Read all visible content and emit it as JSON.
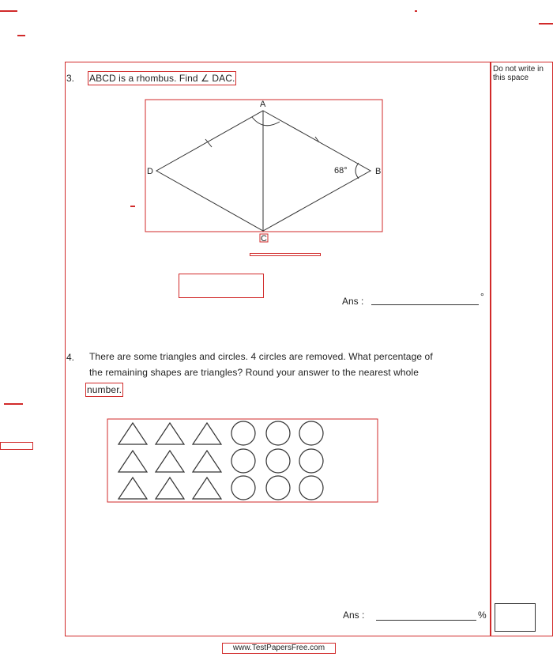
{
  "margin": {
    "note": "Do not write in this space"
  },
  "q3": {
    "number": "3.",
    "prompt": "ABCD is a rhombus. Find ∠ DAC.",
    "labels": {
      "A": "A",
      "B": "B",
      "C": "C",
      "D": "D"
    },
    "angle": "68°",
    "answer_label": "Ans :",
    "unit": "°"
  },
  "q4": {
    "number": "4.",
    "line1": "There are some triangles and circles. 4 circles are removed. What percentage of",
    "line2": "the remaining shapes are triangles? Round your answer to the nearest whole",
    "line3": "number.",
    "shapes": {
      "rows": 3,
      "triangles_per_row": 3,
      "circles_per_row": 3
    },
    "answer_label": "Ans :",
    "unit": "%"
  },
  "footer": {
    "text": "www.TestPapersFree.com"
  }
}
